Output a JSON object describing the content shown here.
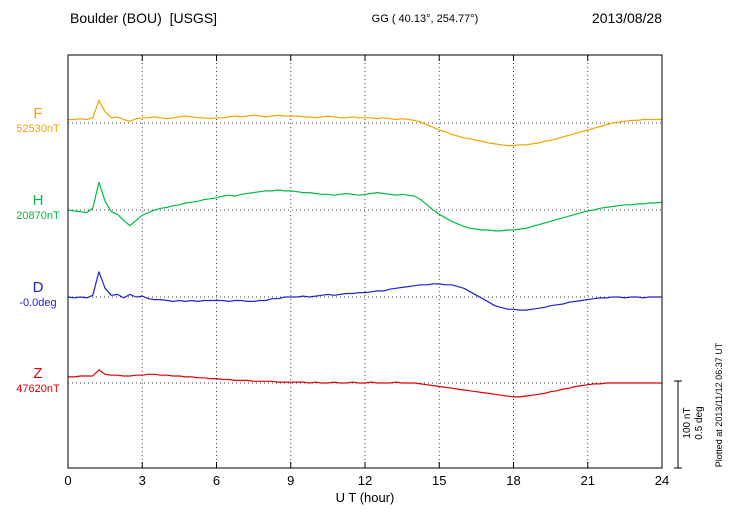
{
  "header": {
    "station": "Boulder (BOU)  [USGS]",
    "coordinates": "GG ( 40.13°, 254.77°)",
    "date": "2013/08/28"
  },
  "footer": {
    "plotted_at": "Plotted at 2013/11/12 06:37 UT"
  },
  "chart_data": {
    "type": "line",
    "title": "Boulder (BOU) [USGS] magnetogram 2013/08/28",
    "xlabel": "U T (hour)",
    "xlim": [
      0,
      24
    ],
    "x_ticks": [
      0,
      3,
      6,
      9,
      12,
      15,
      18,
      21,
      24
    ],
    "x_start": 0,
    "x_step": 0.25,
    "grid": "dotted vertical lines every 3 h; dotted horizontal baseline per trace",
    "legend_position": "left of each trace",
    "scale_bar": {
      "nT": 100,
      "deg": 0.5,
      "nT_label": "100 nT",
      "deg_label": "0.5 deg"
    },
    "series": [
      {
        "id": "F",
        "label": "F",
        "value_label": "52530nT",
        "units": "nT",
        "color": "#f5a400",
        "values_are": "nT offset from 52530 nT baseline",
        "values": [
          4,
          4,
          5,
          4,
          6,
          26,
          13,
          6,
          7,
          4,
          2,
          5,
          6,
          6,
          7,
          6,
          5,
          6,
          7,
          8,
          7,
          6,
          6,
          5,
          6,
          6,
          7,
          8,
          7,
          8,
          9,
          8,
          7,
          8,
          9,
          8,
          8,
          8,
          7,
          7,
          6,
          7,
          8,
          7,
          6,
          6,
          7,
          6,
          6,
          6,
          5,
          6,
          5,
          4,
          5,
          4,
          3,
          1,
          -2,
          -5,
          -8,
          -10,
          -13,
          -15,
          -17,
          -18,
          -20,
          -21,
          -23,
          -24,
          -25,
          -26,
          -26,
          -25,
          -25,
          -24,
          -23,
          -21,
          -20,
          -18,
          -16,
          -14,
          -12,
          -10,
          -8,
          -6,
          -4,
          -2,
          0,
          1,
          2,
          3,
          3,
          4,
          4,
          4,
          4
        ]
      },
      {
        "id": "H",
        "label": "H",
        "value_label": "20870nT",
        "units": "nT",
        "color": "#00bb44",
        "values_are": "nT offset from 20870 nT baseline",
        "values": [
          0,
          -1,
          -2,
          -3,
          2,
          32,
          10,
          -2,
          -5,
          -12,
          -18,
          -12,
          -6,
          -3,
          0,
          2,
          3,
          5,
          6,
          8,
          9,
          10,
          12,
          13,
          14,
          16,
          17,
          16,
          18,
          19,
          20,
          21,
          22,
          22,
          23,
          22,
          22,
          21,
          20,
          20,
          19,
          18,
          18,
          17,
          18,
          19,
          18,
          17,
          18,
          19,
          20,
          19,
          18,
          17,
          18,
          17,
          16,
          12,
          6,
          0,
          -5,
          -9,
          -13,
          -16,
          -19,
          -21,
          -22,
          -23,
          -23,
          -24,
          -24,
          -23,
          -23,
          -22,
          -21,
          -19,
          -17,
          -15,
          -13,
          -11,
          -9,
          -7,
          -5,
          -3,
          -1,
          0,
          2,
          3,
          4,
          5,
          6,
          6,
          7,
          7,
          8,
          8,
          9
        ]
      },
      {
        "id": "D",
        "label": "D",
        "value_label": "-0.0deg",
        "units": "deg",
        "color": "#2222cc",
        "values_are": "deg offset from -0.0 deg baseline",
        "values": [
          0,
          -0.005,
          0,
          -0.005,
          0.01,
          0.145,
          0.05,
          0.01,
          0.015,
          -0.005,
          0.015,
          0,
          0.005,
          -0.01,
          -0.015,
          -0.015,
          -0.02,
          -0.025,
          -0.02,
          -0.025,
          -0.02,
          -0.025,
          -0.02,
          -0.02,
          -0.02,
          -0.02,
          -0.025,
          -0.02,
          -0.02,
          -0.025,
          -0.025,
          -0.02,
          -0.02,
          -0.01,
          -0.01,
          0,
          0,
          0,
          0.005,
          0,
          0.005,
          0.01,
          0.015,
          0.01,
          0.015,
          0.02,
          0.02,
          0.025,
          0.025,
          0.03,
          0.035,
          0.035,
          0.045,
          0.05,
          0.055,
          0.06,
          0.065,
          0.07,
          0.07,
          0.075,
          0.075,
          0.07,
          0.07,
          0.06,
          0.05,
          0.03,
          0.01,
          -0.01,
          -0.03,
          -0.05,
          -0.06,
          -0.07,
          -0.07,
          -0.075,
          -0.075,
          -0.07,
          -0.065,
          -0.06,
          -0.05,
          -0.045,
          -0.04,
          -0.03,
          -0.025,
          -0.02,
          -0.015,
          -0.01,
          -0.005,
          -0.005,
          0,
          0,
          -0.005,
          0,
          0,
          -0.005,
          0,
          0,
          0
        ]
      },
      {
        "id": "Z",
        "label": "Z",
        "value_label": "47620nT",
        "units": "nT",
        "color": "#e00000",
        "values_are": "nT offset from 47620 nT baseline",
        "values": [
          7,
          7,
          8,
          8,
          8,
          15,
          10,
          9,
          9,
          8,
          8,
          9,
          9,
          10,
          10,
          9,
          9,
          8,
          8,
          7,
          7,
          6,
          6,
          5,
          5,
          4,
          4,
          3,
          3,
          3,
          2,
          2,
          2,
          2,
          1,
          1,
          1,
          1,
          1,
          0,
          1,
          0,
          0,
          1,
          0,
          0,
          1,
          0,
          0,
          1,
          0,
          0,
          0,
          1,
          0,
          0,
          0,
          -1,
          -2,
          -3,
          -4,
          -5,
          -6,
          -7,
          -8,
          -9,
          -10,
          -11,
          -12,
          -13,
          -14,
          -15,
          -16,
          -16,
          -15,
          -14,
          -13,
          -12,
          -10,
          -9,
          -7,
          -6,
          -4,
          -3,
          -2,
          -1,
          -1,
          0,
          0,
          0,
          0,
          0,
          0,
          0,
          0,
          0,
          0
        ]
      }
    ]
  }
}
